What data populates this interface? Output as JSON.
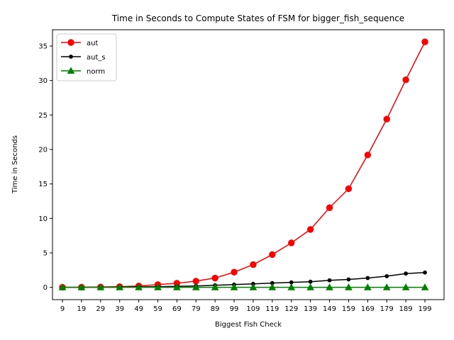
{
  "chart_data": {
    "type": "line",
    "title": "Time in Seconds to Compute States of FSM for bigger_fish_sequence",
    "xlabel": "Biggest Fish Check",
    "ylabel": "Time in Seconds",
    "categories": [
      "9",
      "19",
      "29",
      "39",
      "49",
      "59",
      "69",
      "79",
      "89",
      "99",
      "109",
      "119",
      "129",
      "139",
      "149",
      "159",
      "169",
      "179",
      "189",
      "199"
    ],
    "yticks": [
      0,
      5,
      10,
      15,
      20,
      25,
      30,
      35
    ],
    "ylim": [
      -1.78,
      37.36
    ],
    "grid": false,
    "legend_position": "top-left",
    "series": [
      {
        "name": "aut",
        "color": "#ff0000",
        "marker": "circle",
        "values": [
          0.01,
          0.02,
          0.05,
          0.1,
          0.2,
          0.4,
          0.6,
          0.9,
          1.35,
          2.2,
          3.3,
          4.75,
          6.45,
          8.4,
          11.55,
          14.3,
          19.2,
          24.4,
          30.1,
          35.6
        ]
      },
      {
        "name": "aut_s",
        "color": "#000000",
        "marker": "point",
        "values": [
          0.0,
          0.01,
          0.02,
          0.04,
          0.07,
          0.1,
          0.15,
          0.2,
          0.3,
          0.4,
          0.5,
          0.62,
          0.72,
          0.82,
          1.02,
          1.15,
          1.35,
          1.62,
          2.0,
          2.15
        ]
      },
      {
        "name": "norm",
        "color": "#008000",
        "marker": "triangle",
        "values": [
          0.0,
          0.0,
          0.0,
          0.0,
          0.0,
          0.0,
          0.0,
          0.0,
          0.0,
          0.0,
          0.0,
          0.0,
          0.0,
          0.0,
          0.0,
          0.0,
          0.0,
          0.0,
          0.0,
          0.0
        ]
      }
    ]
  }
}
